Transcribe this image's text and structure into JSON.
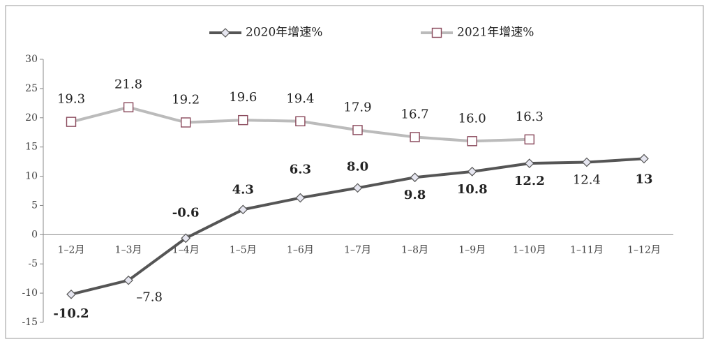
{
  "chart_data": {
    "type": "line",
    "categories": [
      "1–2月",
      "1–3月",
      "1–4月",
      "1–5月",
      "1–6月",
      "1–7月",
      "1–8月",
      "1–9月",
      "1–10月",
      "1–11月",
      "1–12月"
    ],
    "series": [
      {
        "name": "2020年增速%",
        "color": "#555555",
        "marker_color": "#555555",
        "values": [
          -10.2,
          -7.8,
          -0.6,
          4.3,
          6.3,
          8.0,
          9.8,
          10.8,
          12.2,
          12.4,
          13
        ],
        "value_labels": [
          "-10.2",
          "–7.8",
          "-0.6",
          "4.3",
          "6.3",
          "8.0",
          "9.8",
          "10.8",
          "12.2",
          "12.4",
          "13"
        ]
      },
      {
        "name": "2021年增速%",
        "color": "#bbbbbb",
        "marker_color": "#8a4a5c",
        "values": [
          19.3,
          21.8,
          19.2,
          19.6,
          19.4,
          17.9,
          16.7,
          16.0,
          16.3,
          null,
          null
        ],
        "value_labels": [
          "19.3",
          "21.8",
          "19.2",
          "19.6",
          "19.4",
          "17.9",
          "16.7",
          "16.0",
          "16.3",
          null,
          null
        ]
      }
    ],
    "ylim": [
      -15,
      30
    ],
    "yticks": [
      -15,
      -10,
      -5,
      0,
      5,
      10,
      15,
      20,
      25,
      30
    ],
    "grid": false,
    "legend": "top"
  }
}
